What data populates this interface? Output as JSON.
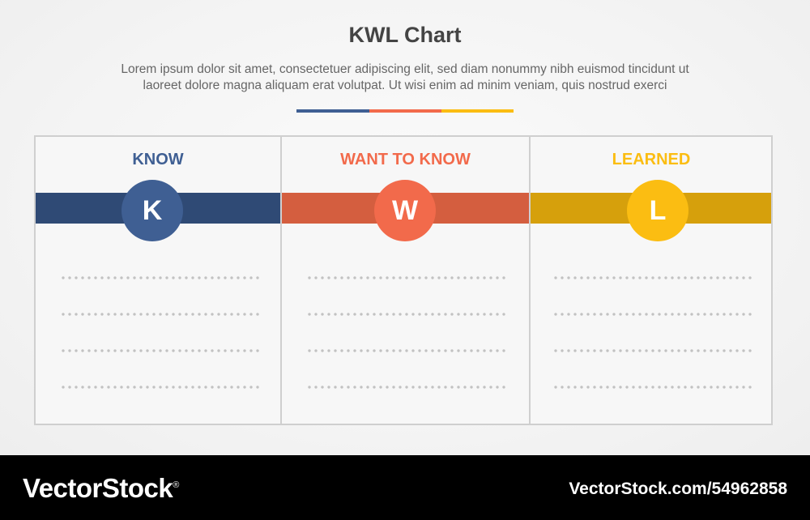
{
  "header": {
    "title": "KWL Chart",
    "description_line1": "Lorem ipsum dolor sit amet, consectetuer adipiscing elit, sed diam nonummy nibh euismod tincidunt ut",
    "description_line2": "laoreet dolore magna aliquam erat volutpat. Ut wisi enim ad minim veniam, quis nostrud exerci"
  },
  "colors": {
    "know": "#3f5f93",
    "know_band": "#2f4a75",
    "want": "#f26a4b",
    "want_band": "#d45e3f",
    "learned": "#fbbd12",
    "learned_band": "#d6a00c"
  },
  "columns": [
    {
      "heading": "KNOW",
      "letter": "K"
    },
    {
      "heading": "WANT TO KNOW",
      "letter": "W"
    },
    {
      "heading": "LEARNED",
      "letter": "L"
    }
  ],
  "footer": {
    "logo": "VectorStock",
    "logo_mark": "®",
    "url": "VectorStock.com/54962858"
  }
}
